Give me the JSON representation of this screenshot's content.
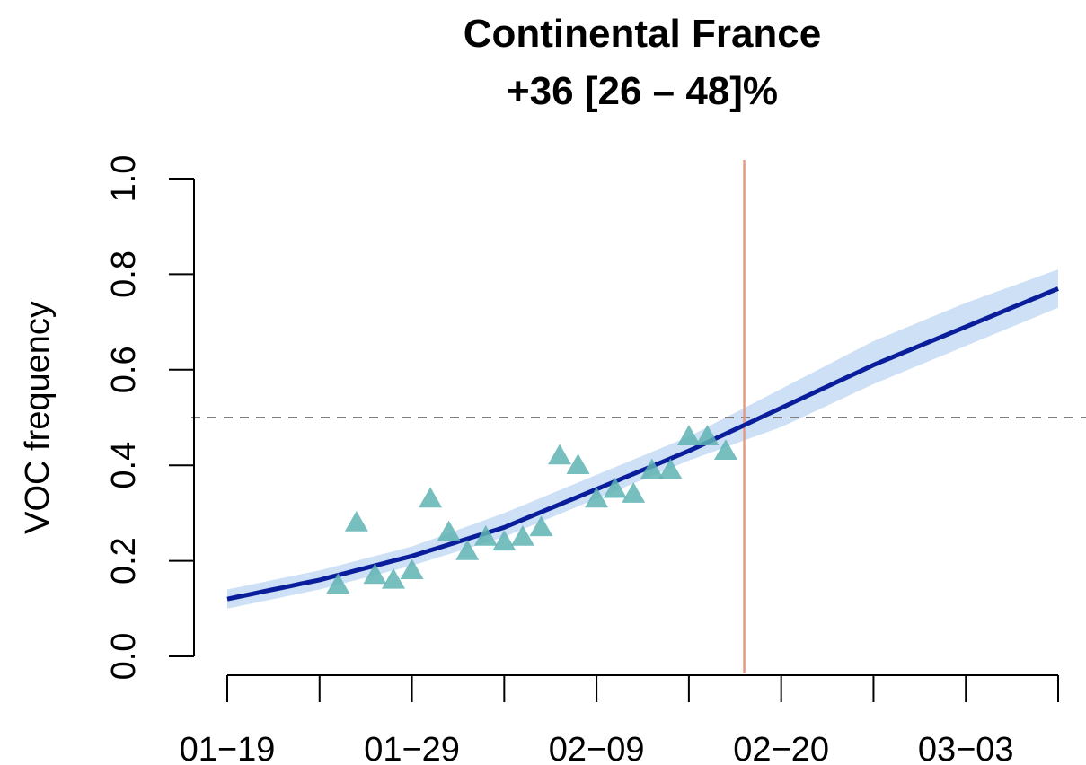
{
  "chart_data": {
    "type": "scatter",
    "title": "Continental France",
    "subtitle": "+36 [26 – 48]%",
    "xlabel": "",
    "ylabel": "VOC frequency",
    "x_tick_labels": [
      "01−19",
      "01−29",
      "02−09",
      "02−20",
      "03−03"
    ],
    "x_tick_dates": [
      "2021-01-19",
      "2021-01-24",
      "2021-01-29",
      "2021-02-03",
      "2021-02-08",
      "2021-02-13",
      "2021-02-18",
      "2021-02-23",
      "2021-02-28",
      "2021-03-05"
    ],
    "xlim": [
      "2021-01-19",
      "2021-03-05"
    ],
    "ylim": [
      0,
      1
    ],
    "y_ticks": [
      "0.0",
      "0.2",
      "0.4",
      "0.6",
      "0.8",
      "1.0"
    ],
    "grid": false,
    "legend": "none",
    "colors": {
      "points": "#5fb3b3",
      "fit_line": "#0a1e9c",
      "band": "#cde0f6",
      "vertical_line": "#e39a86",
      "threshold_line": "#7f7f7f"
    },
    "points": [
      {
        "x": "2021-01-25",
        "y": 0.15
      },
      {
        "x": "2021-01-26",
        "y": 0.28
      },
      {
        "x": "2021-01-27",
        "y": 0.17
      },
      {
        "x": "2021-01-28",
        "y": 0.16
      },
      {
        "x": "2021-01-29",
        "y": 0.18
      },
      {
        "x": "2021-01-30",
        "y": 0.33
      },
      {
        "x": "2021-01-31",
        "y": 0.26
      },
      {
        "x": "2021-02-01",
        "y": 0.22
      },
      {
        "x": "2021-02-02",
        "y": 0.25
      },
      {
        "x": "2021-02-03",
        "y": 0.24
      },
      {
        "x": "2021-02-04",
        "y": 0.25
      },
      {
        "x": "2021-02-05",
        "y": 0.27
      },
      {
        "x": "2021-02-06",
        "y": 0.42
      },
      {
        "x": "2021-02-07",
        "y": 0.4
      },
      {
        "x": "2021-02-08",
        "y": 0.33
      },
      {
        "x": "2021-02-09",
        "y": 0.35
      },
      {
        "x": "2021-02-10",
        "y": 0.34
      },
      {
        "x": "2021-02-11",
        "y": 0.39
      },
      {
        "x": "2021-02-12",
        "y": 0.39
      },
      {
        "x": "2021-02-13",
        "y": 0.46
      },
      {
        "x": "2021-02-14",
        "y": 0.46
      },
      {
        "x": "2021-02-15",
        "y": 0.43
      }
    ],
    "fit": {
      "x": [
        "2021-01-19",
        "2021-01-24",
        "2021-01-29",
        "2021-02-03",
        "2021-02-08",
        "2021-02-13",
        "2021-02-18",
        "2021-02-23",
        "2021-02-28",
        "2021-03-05"
      ],
      "y": [
        0.12,
        0.16,
        0.21,
        0.27,
        0.35,
        0.43,
        0.52,
        0.61,
        0.69,
        0.77
      ],
      "lower": [
        0.1,
        0.14,
        0.19,
        0.25,
        0.33,
        0.41,
        0.48,
        0.57,
        0.65,
        0.73
      ],
      "upper": [
        0.14,
        0.18,
        0.23,
        0.3,
        0.38,
        0.46,
        0.56,
        0.66,
        0.74,
        0.81
      ]
    },
    "vertical_line_x": "2021-02-16",
    "threshold_y": 0.5
  }
}
